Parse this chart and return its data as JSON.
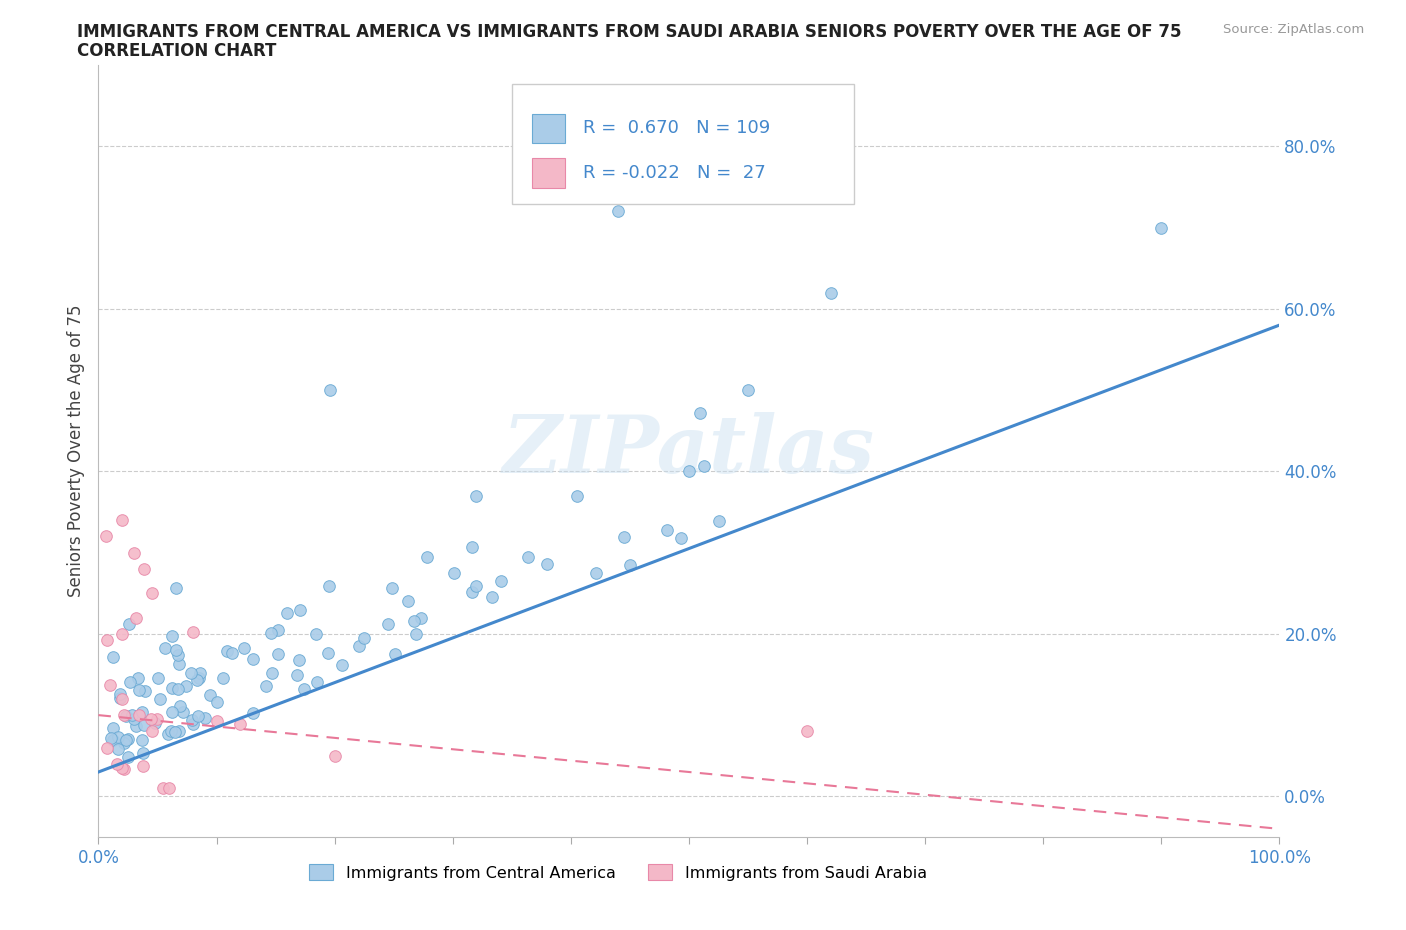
{
  "title_line1": "IMMIGRANTS FROM CENTRAL AMERICA VS IMMIGRANTS FROM SAUDI ARABIA SENIORS POVERTY OVER THE AGE OF 75",
  "title_line2": "CORRELATION CHART",
  "source": "Source: ZipAtlas.com",
  "ylabel": "Seniors Poverty Over the Age of 75",
  "ytick_labels": [
    "0.0%",
    "20.0%",
    "40.0%",
    "60.0%",
    "80.0%"
  ],
  "ytick_values": [
    0.0,
    0.2,
    0.4,
    0.6,
    0.8
  ],
  "xlim": [
    0.0,
    1.0
  ],
  "ylim": [
    -0.05,
    0.9
  ],
  "legend_blue_label": "Immigrants from Central America",
  "legend_pink_label": "Immigrants from Saudi Arabia",
  "R_blue": 0.67,
  "N_blue": 109,
  "R_pink": -0.022,
  "N_pink": 27,
  "color_blue": "#aacce8",
  "color_blue_edge": "#6aaad4",
  "color_blue_line": "#4488cc",
  "color_pink": "#f4b8c8",
  "color_pink_edge": "#e888a8",
  "color_pink_line": "#e87898",
  "color_text_blue": "#4488cc",
  "watermark": "ZIPatlas",
  "blue_line_x0": 0.0,
  "blue_line_y0": 0.03,
  "blue_line_x1": 1.0,
  "blue_line_y1": 0.58,
  "pink_line_x0": 0.0,
  "pink_line_y0": 0.1,
  "pink_line_x1": 1.0,
  "pink_line_y1": -0.04
}
